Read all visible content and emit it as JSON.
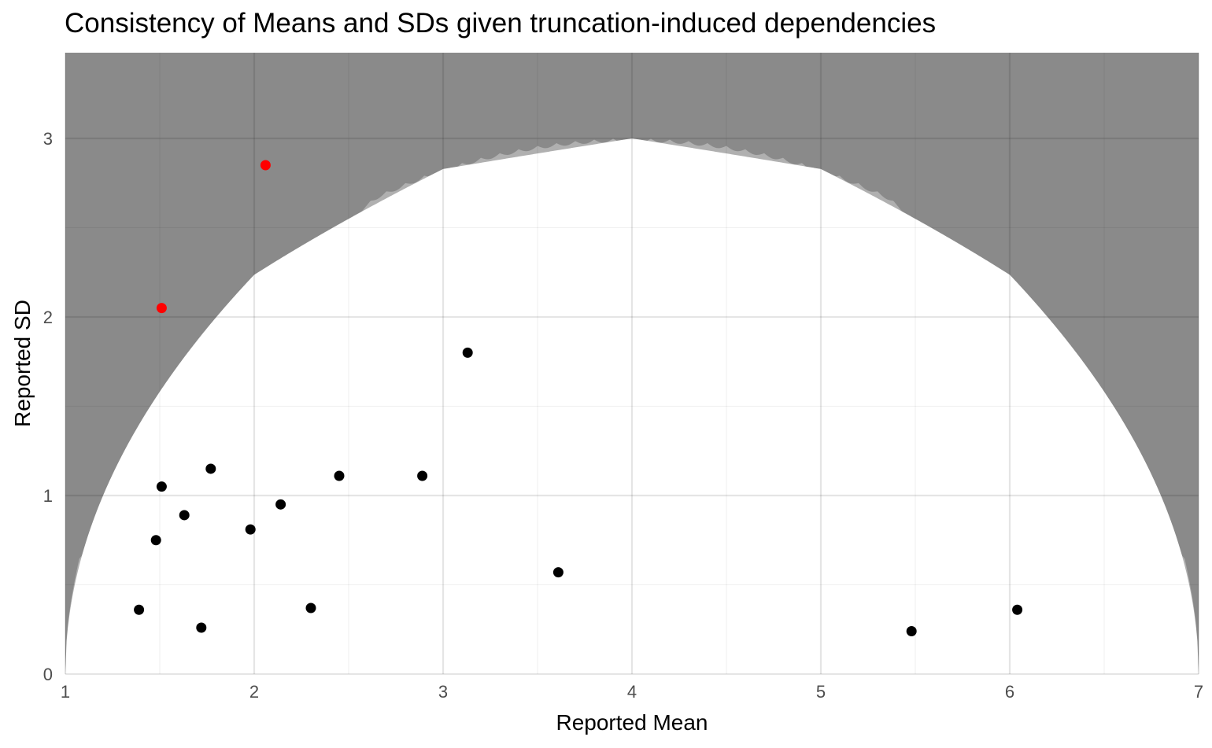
{
  "chart_data": {
    "type": "scatter",
    "title": "Consistency of Means and SDs given truncation-induced dependencies",
    "xlabel": "Reported Mean",
    "ylabel": "Reported SD",
    "xlim": [
      1,
      7
    ],
    "ylim": [
      0,
      3.48
    ],
    "x_ticks": [
      1,
      2,
      3,
      4,
      5,
      6,
      7
    ],
    "y_ticks": [
      0,
      1,
      2,
      3
    ],
    "grid": true,
    "legend": "none",
    "colors": {
      "background_inconsistent": "#8a8a8a",
      "region_borderline": "#b0b0b0",
      "region_consistent": "#ffffff",
      "grid_major": "#e3e3e3",
      "point_consistent": "#000000",
      "point_inconsistent": "#ff0000"
    },
    "points": [
      {
        "x": 1.39,
        "y": 0.36,
        "status": "consistent"
      },
      {
        "x": 1.48,
        "y": 0.75,
        "status": "consistent"
      },
      {
        "x": 1.51,
        "y": 1.05,
        "status": "consistent"
      },
      {
        "x": 1.51,
        "y": 2.05,
        "status": "inconsistent"
      },
      {
        "x": 1.63,
        "y": 0.89,
        "status": "consistent"
      },
      {
        "x": 1.72,
        "y": 0.26,
        "status": "consistent"
      },
      {
        "x": 1.77,
        "y": 1.15,
        "status": "consistent"
      },
      {
        "x": 1.98,
        "y": 0.81,
        "status": "consistent"
      },
      {
        "x": 2.06,
        "y": 2.85,
        "status": "inconsistent"
      },
      {
        "x": 2.14,
        "y": 0.95,
        "status": "consistent"
      },
      {
        "x": 2.3,
        "y": 0.37,
        "status": "consistent"
      },
      {
        "x": 2.45,
        "y": 1.11,
        "status": "consistent"
      },
      {
        "x": 2.89,
        "y": 1.11,
        "status": "consistent"
      },
      {
        "x": 3.13,
        "y": 1.8,
        "status": "consistent"
      },
      {
        "x": 3.61,
        "y": 0.57,
        "status": "consistent"
      },
      {
        "x": 5.48,
        "y": 0.24,
        "status": "consistent"
      },
      {
        "x": 6.04,
        "y": 0.36,
        "status": "consistent"
      }
    ]
  }
}
